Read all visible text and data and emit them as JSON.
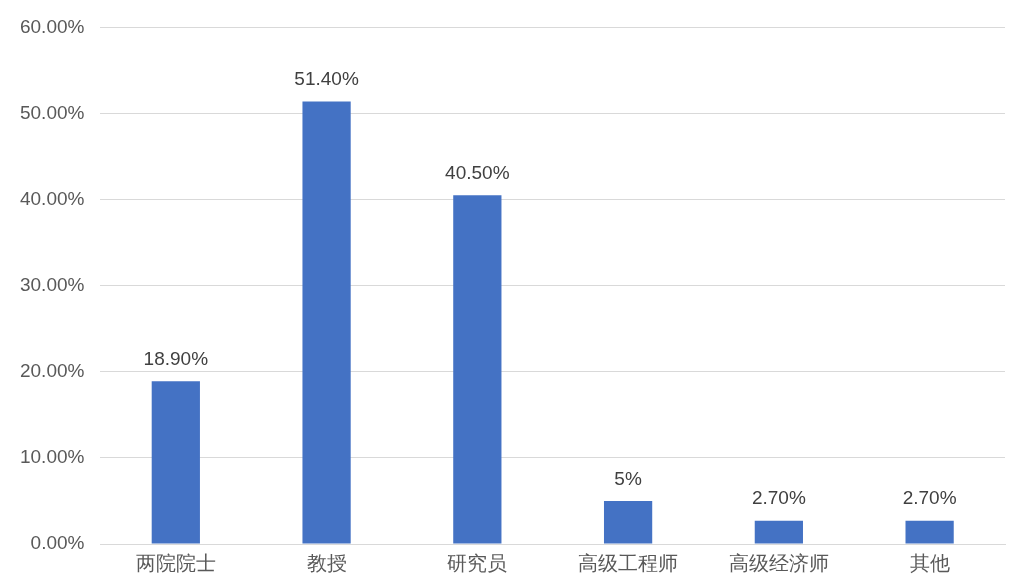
{
  "chart_data": {
    "type": "bar",
    "categories": [
      "两院院士",
      "教授",
      "研究员",
      "高级工程师",
      "高级经济师",
      "其他"
    ],
    "values": [
      18.9,
      51.4,
      40.5,
      5,
      2.7,
      2.7
    ],
    "value_labels": [
      "18.90%",
      "51.40%",
      "40.50%",
      "5%",
      "2.70%",
      "2.70%"
    ],
    "color": "#4472c4",
    "ylim": [
      0,
      60
    ],
    "yticks": [
      {
        "value": 0,
        "label": "0.00%"
      },
      {
        "value": 10,
        "label": "10.00%"
      },
      {
        "value": 20,
        "label": "20.00%"
      },
      {
        "value": 30,
        "label": "30.00%"
      },
      {
        "value": 40,
        "label": "40.00%"
      },
      {
        "value": 50,
        "label": "50.00%"
      },
      {
        "value": 60,
        "label": "60.00%"
      }
    ],
    "grid": "y",
    "legend": false
  }
}
